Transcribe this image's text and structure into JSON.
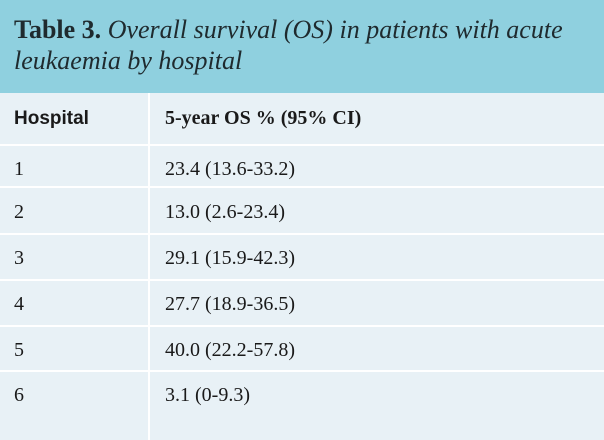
{
  "caption": {
    "label": "Table 3.",
    "title": "Overall survival (OS) in patients with acute leukaemia by hospital"
  },
  "table": {
    "headers": [
      "Hospital",
      "5-year OS % (95% CI)"
    ],
    "rows": [
      [
        "1",
        "23.4 (13.6-33.2)"
      ],
      [
        "2",
        "13.0 (2.6-23.4)"
      ],
      [
        "3",
        "29.1 (15.9-42.3)"
      ],
      [
        "4",
        "27.7 (18.9-36.5)"
      ],
      [
        "5",
        "40.0 (22.2-57.8)"
      ],
      [
        "6",
        "3.1 (0-9.3)"
      ]
    ]
  },
  "colors": {
    "caption_background": "#8fd0df",
    "table_background": "#e8f1f6",
    "divider": "#ffffff"
  }
}
